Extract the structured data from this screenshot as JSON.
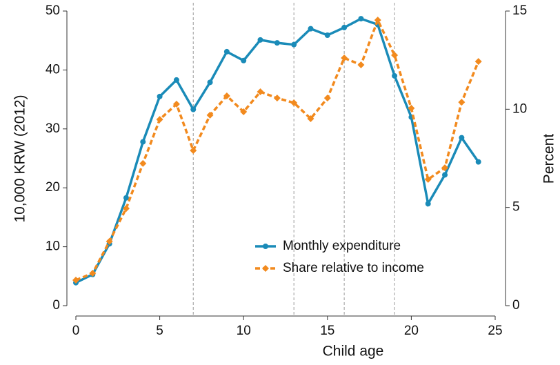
{
  "chart_data": {
    "type": "line",
    "x": [
      0,
      1,
      2,
      3,
      4,
      5,
      6,
      7,
      8,
      9,
      10,
      11,
      12,
      13,
      14,
      15,
      16,
      17,
      18,
      19,
      20,
      21,
      22,
      23,
      24
    ],
    "series": [
      {
        "name": "Monthly expenditure",
        "color": "#1a8bb8",
        "axis": "y",
        "values": [
          3.9,
          5.3,
          10.5,
          18.3,
          27.8,
          35.5,
          38.3,
          33.3,
          37.9,
          43.1,
          41.6,
          45.1,
          44.6,
          44.3,
          47.0,
          45.9,
          47.2,
          48.7,
          47.7,
          39.0,
          32.0,
          17.3,
          22.2,
          28.5,
          24.4
        ]
      },
      {
        "name": "Share relative to income",
        "color": "#f28a1e",
        "axis": "y2",
        "values": [
          1.3,
          1.65,
          3.27,
          4.95,
          7.24,
          9.48,
          10.26,
          7.9,
          9.7,
          10.68,
          9.87,
          10.89,
          10.57,
          10.33,
          9.52,
          10.57,
          12.61,
          12.26,
          14.54,
          12.75,
          10.05,
          6.43,
          7.02,
          10.36,
          12.43
        ]
      }
    ],
    "xlabel": "Child age",
    "ylabel": "10,000 KRW (2012)",
    "y2label": "Percent",
    "xlim": [
      0,
      25
    ],
    "xticks": [
      0,
      5,
      10,
      15,
      20,
      25
    ],
    "ylim": [
      0,
      50
    ],
    "yticks": [
      0,
      10,
      20,
      30,
      40,
      50
    ],
    "y2lim": [
      0,
      15
    ],
    "y2ticks": [
      0,
      5,
      10,
      15
    ],
    "vlines": [
      7,
      13,
      16,
      19
    ]
  }
}
